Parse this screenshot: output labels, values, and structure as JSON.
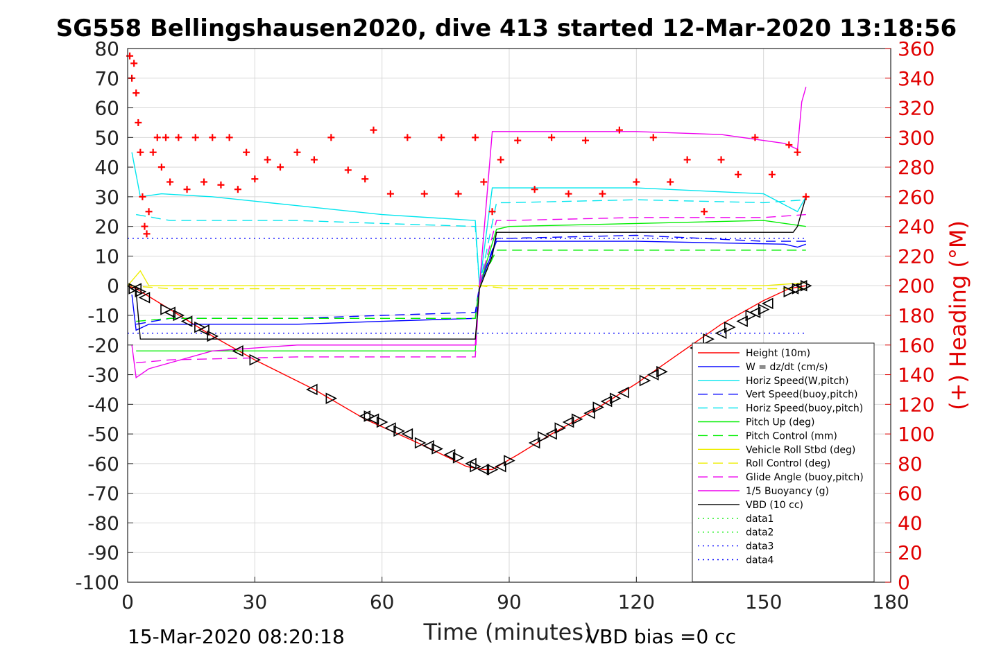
{
  "chart_data": {
    "type": "line",
    "title": "SG558 Bellingshausen2020, dive 413 started 12-Mar-2020 13:18:56",
    "xlabel": "Time (minutes)",
    "ylabel_right": "(+) Heading (°M)",
    "footer_left": "15-Mar-2020 08:20:18",
    "footer_right": "VBD bias =0 cc",
    "xlim": [
      0,
      180
    ],
    "ylim": [
      -100,
      80
    ],
    "ylim_right": [
      0,
      360
    ],
    "xticks": [
      "0",
      "30",
      "60",
      "90",
      "120",
      "150",
      "180"
    ],
    "yticks": [
      "80",
      "70",
      "60",
      "50",
      "40",
      "30",
      "20",
      "10",
      "0",
      "-10",
      "-20",
      "-30",
      "-40",
      "-50",
      "-60",
      "-70",
      "-80",
      "-90",
      "-100"
    ],
    "yticks_right": [
      "360",
      "340",
      "320",
      "300",
      "280",
      "260",
      "240",
      "220",
      "200",
      "180",
      "160",
      "140",
      "120",
      "100",
      "80",
      "60",
      "40",
      "20",
      "0"
    ],
    "grid": true,
    "legend_position": "bottom-right",
    "series": [
      {
        "name": "Height (10m)",
        "color": "#ff0000",
        "style": "solid",
        "x": [
          0,
          2,
          10,
          20,
          30,
          44,
          56,
          70,
          80,
          84,
          86,
          92,
          100,
          110,
          120,
          130,
          140,
          150,
          156,
          160
        ],
        "y": [
          0,
          -1,
          -8,
          -17,
          -25,
          -35,
          -45,
          -54,
          -61,
          -62,
          -62,
          -57,
          -50,
          -42,
          -33,
          -23,
          -13,
          -5,
          -1,
          0
        ]
      },
      {
        "name": "W = dz/dt (cm/s)",
        "color": "#0000ff",
        "style": "solid",
        "x": [
          1,
          2,
          5,
          20,
          40,
          60,
          82,
          83,
          87,
          90,
          120,
          155,
          158,
          160
        ],
        "y": [
          -3,
          -15,
          -13,
          -13,
          -13,
          -12,
          -11,
          0,
          15,
          15,
          15,
          14,
          13,
          14
        ]
      },
      {
        "name": "Horiz Speed(W,pitch)",
        "color": "#00e5ee",
        "style": "solid",
        "x": [
          1,
          3,
          8,
          20,
          40,
          60,
          82,
          83,
          86,
          90,
          120,
          150,
          158,
          160
        ],
        "y": [
          45,
          30,
          31,
          30,
          27,
          24,
          22,
          0,
          33,
          33,
          33,
          31,
          25,
          30
        ]
      },
      {
        "name": "Vert Speed(buoy,pitch)",
        "color": "#0000ff",
        "style": "dashed",
        "x": [
          2,
          10,
          40,
          60,
          82,
          83,
          87,
          90,
          120,
          150,
          160
        ],
        "y": [
          -13,
          -11,
          -11,
          -10,
          -9,
          0,
          16,
          16,
          17,
          15,
          15
        ]
      },
      {
        "name": "Horiz Speed(buoy,pitch)",
        "color": "#00e5ee",
        "style": "dashed",
        "x": [
          2,
          10,
          40,
          60,
          82,
          83,
          87,
          90,
          120,
          150,
          160
        ],
        "y": [
          24,
          22,
          22,
          21,
          20,
          0,
          28,
          28,
          29,
          28,
          29
        ]
      },
      {
        "name": "Pitch Up (deg)",
        "color": "#00ee00",
        "style": "solid",
        "x": [
          2,
          10,
          40,
          60,
          82,
          83,
          87,
          90,
          120,
          150,
          160
        ],
        "y": [
          -22,
          -22,
          -22,
          -22,
          -22,
          0,
          19,
          20,
          21,
          22,
          20
        ]
      },
      {
        "name": "Pitch Control (mm)",
        "color": "#00ee00",
        "style": "dashed",
        "x": [
          2,
          10,
          40,
          60,
          82,
          83,
          87,
          90,
          120,
          150,
          160
        ],
        "y": [
          -12,
          -11,
          -11,
          -11,
          -11,
          0,
          12,
          12,
          12,
          12,
          12
        ]
      },
      {
        "name": "Vehicle Roll Stbd (deg)",
        "color": "#eeee00",
        "style": "solid",
        "x": [
          0,
          3,
          5,
          30,
          60,
          90,
          120,
          150,
          160
        ],
        "y": [
          0,
          5,
          0,
          0,
          0,
          0,
          0,
          0,
          1
        ]
      },
      {
        "name": "Roll Control (deg)",
        "color": "#eeee00",
        "style": "dashed",
        "x": [
          0,
          10,
          40,
          82,
          83,
          90,
          120,
          160
        ],
        "y": [
          0,
          -1,
          -1,
          -1,
          0,
          -1,
          -1,
          -1
        ]
      },
      {
        "name": "Glide Angle (buoy,pitch)",
        "color": "#ee00ee",
        "style": "dashed",
        "x": [
          2,
          10,
          40,
          60,
          82,
          83,
          87,
          90,
          120,
          150,
          160
        ],
        "y": [
          -26,
          -25,
          -24,
          -24,
          -24,
          0,
          22,
          22,
          23,
          23,
          24
        ]
      },
      {
        "name": "1/5 Buoyancy (g)",
        "color": "#ee00ee",
        "style": "solid",
        "x": [
          1,
          2,
          5,
          20,
          40,
          60,
          82,
          83,
          86,
          90,
          120,
          140,
          155,
          158,
          159,
          160
        ],
        "y": [
          -20,
          -31,
          -28,
          -22,
          -20,
          -20,
          -20,
          0,
          52,
          52,
          52,
          51,
          48,
          46,
          62,
          67
        ]
      },
      {
        "name": "VBD (10 cc)",
        "color": "#000000",
        "style": "solid",
        "x": [
          0,
          2,
          3,
          82,
          83,
          86,
          87,
          90,
          150,
          157,
          158,
          160
        ],
        "y": [
          0,
          -2,
          -18,
          -18,
          -1,
          10,
          18,
          18,
          18,
          18,
          20,
          30
        ]
      },
      {
        "name": "data1",
        "color": "#00ee00",
        "style": "dotted",
        "x": [],
        "y": []
      },
      {
        "name": "data2",
        "color": "#00ee00",
        "style": "dotted",
        "x": [],
        "y": []
      },
      {
        "name": "data3",
        "color": "#0000ff",
        "style": "dotted",
        "x": [
          0,
          160
        ],
        "y": [
          16,
          16
        ]
      },
      {
        "name": "data4",
        "color": "#0000ff",
        "style": "dotted",
        "x": [
          0,
          160
        ],
        "y": [
          -16,
          -16
        ]
      }
    ],
    "heading_series": {
      "color": "#ff0000",
      "marker": "+",
      "axis": "right",
      "x": [
        0.5,
        1,
        1.5,
        2,
        2.5,
        3,
        3.5,
        4,
        4.5,
        5,
        6,
        7,
        8,
        9,
        10,
        12,
        14,
        16,
        18,
        20,
        22,
        24,
        26,
        28,
        30,
        33,
        36,
        40,
        44,
        48,
        52,
        56,
        58,
        62,
        66,
        70,
        74,
        78,
        82,
        84,
        86,
        88,
        92,
        96,
        100,
        104,
        108,
        112,
        116,
        120,
        124,
        128,
        132,
        136,
        140,
        144,
        148,
        152,
        156,
        158,
        160
      ],
      "y": [
        355,
        340,
        350,
        330,
        310,
        290,
        260,
        240,
        235,
        250,
        290,
        300,
        280,
        300,
        270,
        300,
        265,
        300,
        270,
        300,
        268,
        300,
        265,
        290,
        272,
        285,
        280,
        290,
        285,
        300,
        278,
        272,
        305,
        262,
        300,
        262,
        300,
        262,
        300,
        270,
        250,
        285,
        298,
        265,
        300,
        262,
        298,
        262,
        305,
        270,
        300,
        270,
        285,
        250,
        285,
        275,
        300,
        275,
        295,
        290,
        260
      ]
    },
    "depth_markers": {
      "color": "#000000",
      "x": [
        1.5,
        2,
        3,
        4,
        9,
        10,
        12,
        14,
        17,
        18,
        20,
        26,
        30,
        43.5,
        48,
        56,
        57,
        58,
        60,
        62,
        64,
        66,
        69,
        71,
        73,
        76,
        78,
        81,
        82,
        84,
        86,
        88,
        90,
        96,
        98,
        100,
        102,
        104,
        106,
        109,
        111,
        113,
        115,
        117,
        122,
        124,
        126,
        134,
        137,
        140,
        142,
        145,
        147,
        148,
        150,
        151,
        156,
        157,
        158,
        159,
        160
      ],
      "y": [
        -1,
        -1,
        -2,
        -4,
        -8,
        -9,
        -10,
        -12,
        -14,
        -15,
        -17,
        -22,
        -25,
        -35,
        -38,
        -44,
        -44,
        -45,
        -46,
        -48,
        -49,
        -50,
        -53,
        -54,
        -55,
        -57,
        -58,
        -60,
        -61,
        -62,
        -62,
        -61,
        -59,
        -53,
        -51,
        -50,
        -48,
        -46,
        -45,
        -43,
        -41,
        -39,
        -38,
        -36,
        -32,
        -30,
        -29,
        -21,
        -18,
        -16,
        -14,
        -12,
        -10,
        -9,
        -8,
        -6,
        -2,
        -1,
        -1,
        0,
        0
      ]
    }
  }
}
